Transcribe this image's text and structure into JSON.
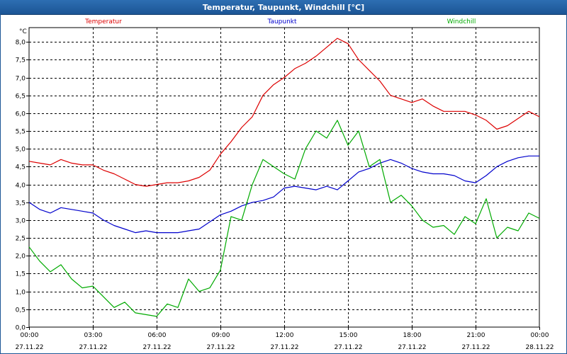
{
  "window": {
    "title": "Temperatur, Taupunkt, Windchill [°C]"
  },
  "chart_data": {
    "type": "line",
    "unit_label": "°C",
    "ylim": [
      0.0,
      8.4
    ],
    "y_ticks": [
      "0,0",
      "0,5",
      "1,0",
      "1,5",
      "2,0",
      "2,5",
      "3,0",
      "3,5",
      "4,0",
      "4,5",
      "5,0",
      "5,5",
      "6,0",
      "6,5",
      "7,0",
      "7,5",
      "8,0"
    ],
    "x_ticks": [
      {
        "time": "00:00",
        "date": "27.11.22"
      },
      {
        "time": "03:00",
        "date": "27.11.22"
      },
      {
        "time": "06:00",
        "date": "27.11.22"
      },
      {
        "time": "09:00",
        "date": "27.11.22"
      },
      {
        "time": "12:00",
        "date": "27.11.22"
      },
      {
        "time": "15:00",
        "date": "27.11.22"
      },
      {
        "time": "18:00",
        "date": "27.11.22"
      },
      {
        "time": "21:00",
        "date": "27.11.22"
      },
      {
        "time": "00:00",
        "date": "28.11.22"
      }
    ],
    "x_range_hours": [
      0,
      24
    ],
    "grid": "dashed",
    "legend_placement": "top",
    "series": [
      {
        "name": "Temperatur",
        "color": "#dd0000",
        "x": [
          0,
          0.5,
          1,
          1.5,
          2,
          2.5,
          3,
          3.5,
          4,
          4.5,
          5,
          5.5,
          6,
          6.5,
          7,
          7.5,
          8,
          8.5,
          9,
          9.5,
          10,
          10.5,
          11,
          11.5,
          12,
          12.5,
          13,
          13.5,
          14,
          14.5,
          15,
          15.5,
          16,
          16.5,
          17,
          17.5,
          18,
          18.5,
          19,
          19.5,
          20,
          20.5,
          21,
          21.5,
          22,
          22.5,
          23,
          23.5,
          24
        ],
        "y": [
          4.65,
          4.6,
          4.55,
          4.7,
          4.6,
          4.55,
          4.55,
          4.4,
          4.3,
          4.15,
          4.0,
          3.95,
          4.0,
          4.05,
          4.05,
          4.1,
          4.2,
          4.4,
          4.85,
          5.2,
          5.6,
          5.9,
          6.5,
          6.8,
          7.0,
          7.25,
          7.4,
          7.6,
          7.85,
          8.1,
          7.95,
          7.5,
          7.2,
          6.9,
          6.5,
          6.4,
          6.3,
          6.4,
          6.2,
          6.05,
          6.05,
          6.05,
          5.95,
          5.8,
          5.55,
          5.65,
          5.85,
          6.05,
          5.9
        ]
      },
      {
        "name": "Taupunkt",
        "color": "#0000cc",
        "x": [
          0,
          0.5,
          1,
          1.5,
          2,
          2.5,
          3,
          3.5,
          4,
          4.5,
          5,
          5.5,
          6,
          6.5,
          7,
          7.5,
          8,
          8.5,
          9,
          9.5,
          10,
          10.5,
          11,
          11.5,
          12,
          12.5,
          13,
          13.5,
          14,
          14.5,
          15,
          15.5,
          16,
          16.5,
          17,
          17.5,
          18,
          18.5,
          19,
          19.5,
          20,
          20.5,
          21,
          21.5,
          22,
          22.5,
          23,
          23.5,
          24
        ],
        "y": [
          3.5,
          3.3,
          3.2,
          3.35,
          3.3,
          3.25,
          3.2,
          3.0,
          2.85,
          2.75,
          2.65,
          2.7,
          2.65,
          2.65,
          2.65,
          2.7,
          2.75,
          2.95,
          3.15,
          3.25,
          3.4,
          3.5,
          3.55,
          3.65,
          3.9,
          3.95,
          3.9,
          3.85,
          3.95,
          3.85,
          4.1,
          4.35,
          4.45,
          4.6,
          4.7,
          4.6,
          4.45,
          4.35,
          4.3,
          4.3,
          4.25,
          4.1,
          4.05,
          4.25,
          4.5,
          4.65,
          4.75,
          4.8,
          4.8
        ]
      },
      {
        "name": "Windchill",
        "color": "#00aa00",
        "x": [
          0,
          0.5,
          1,
          1.5,
          2,
          2.5,
          3,
          3.5,
          4,
          4.5,
          5,
          5.5,
          6,
          6.5,
          7,
          7.5,
          8,
          8.5,
          9,
          9.5,
          10,
          10.5,
          11,
          11.5,
          12,
          12.5,
          13,
          13.5,
          14,
          14.5,
          15,
          15.5,
          16,
          16.5,
          17,
          17.5,
          18,
          18.5,
          19,
          19.5,
          20,
          20.5,
          21,
          21.5,
          22,
          22.5,
          23,
          23.5,
          24
        ],
        "y": [
          2.25,
          1.85,
          1.55,
          1.75,
          1.35,
          1.1,
          1.15,
          0.85,
          0.55,
          0.7,
          0.4,
          0.35,
          0.3,
          0.65,
          0.55,
          1.35,
          1.0,
          1.1,
          1.6,
          3.1,
          3.0,
          4.0,
          4.7,
          4.5,
          4.3,
          4.15,
          5.0,
          5.5,
          5.3,
          5.8,
          5.1,
          5.5,
          4.5,
          4.7,
          3.5,
          3.7,
          3.4,
          3.0,
          2.8,
          2.85,
          2.6,
          3.1,
          2.9,
          3.6,
          2.5,
          2.8,
          2.7,
          3.2,
          3.05
        ]
      }
    ]
  }
}
